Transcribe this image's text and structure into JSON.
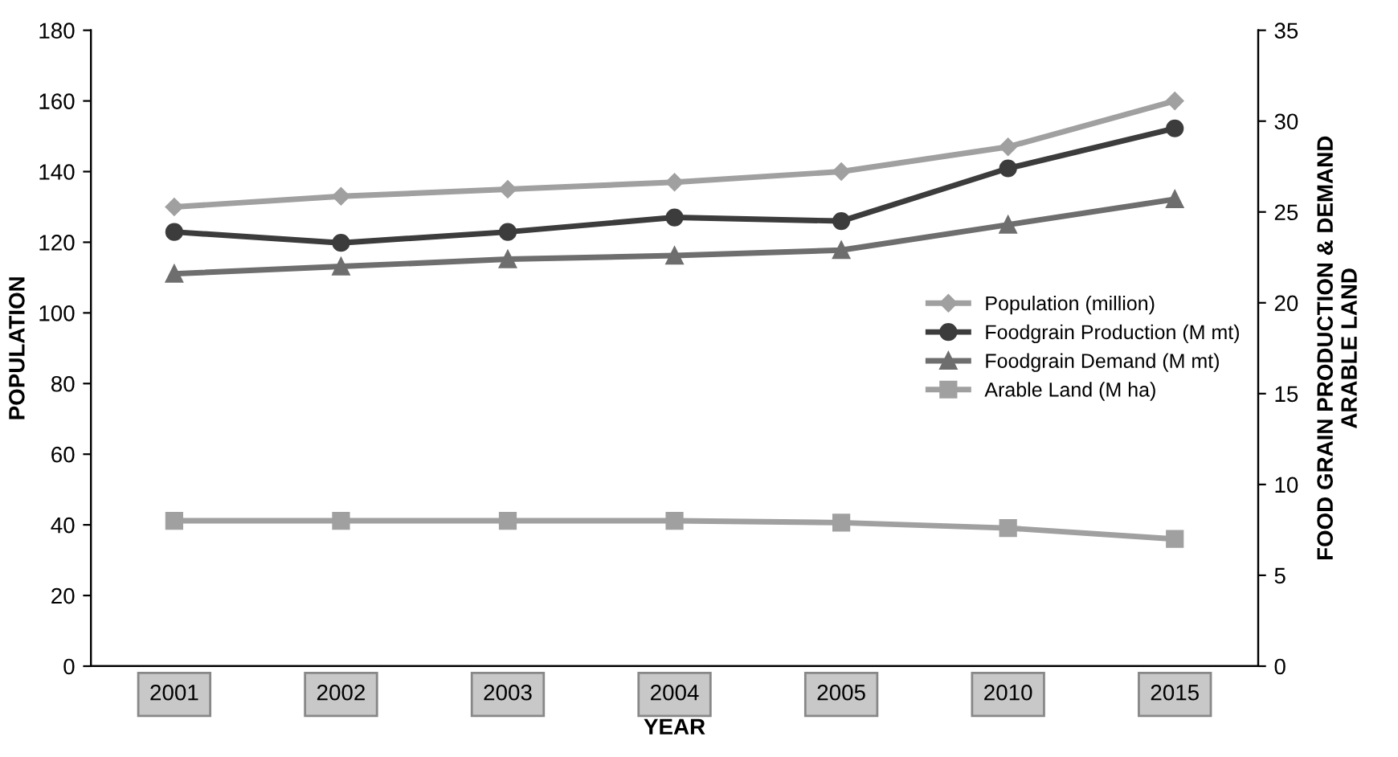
{
  "chart_data": {
    "type": "line",
    "xlabel": "YEAR",
    "ylabel": "POPULATION",
    "y2label": "FOOD GRAIN PRODUCTION & DEMAND\nARABLE LAND",
    "categories": [
      "2001",
      "2002",
      "2003",
      "2004",
      "2005",
      "2010",
      "2015"
    ],
    "ylim": [
      0,
      180
    ],
    "yticks": [
      0,
      20,
      40,
      60,
      80,
      100,
      120,
      140,
      160,
      180
    ],
    "y2lim": [
      0,
      35
    ],
    "y2ticks": [
      0,
      5,
      10,
      15,
      20,
      25,
      30,
      35
    ],
    "legend": "right",
    "grid": false,
    "series": [
      {
        "name": "Population (million)",
        "color": "#a0a0a0",
        "marker": "diamond",
        "values": [
          130,
          133,
          135,
          137,
          140,
          147,
          160
        ]
      },
      {
        "name": "Foodgrain Production (M mt)",
        "color": "#3c3c3c",
        "marker": "circle",
        "axis": "y2",
        "values": [
          23.9,
          23.3,
          23.9,
          24.7,
          24.5,
          27.4,
          29.6
        ]
      },
      {
        "name": "Foodgrain Demand (M mt)",
        "color": "#6e6e6e",
        "marker": "triangle",
        "axis": "y2",
        "values": [
          21.6,
          22.0,
          22.4,
          22.6,
          22.9,
          24.3,
          25.7
        ]
      },
      {
        "name": "Arable Land (M ha)",
        "color": "#a0a0a0",
        "marker": "square",
        "axis": "y2",
        "values": [
          8.0,
          8.0,
          8.0,
          8.0,
          7.9,
          7.6,
          7.0
        ]
      }
    ]
  }
}
